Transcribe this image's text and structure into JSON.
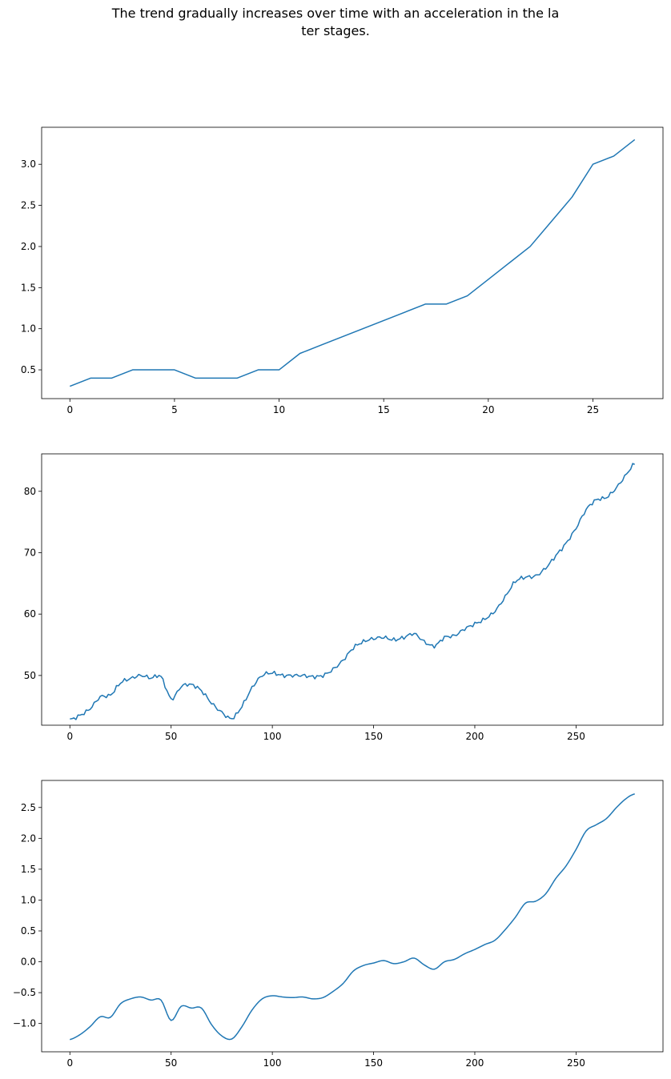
{
  "title_lines": [
    "The trend gradually increases over time with an acceleration in the la",
    "ter stages."
  ],
  "colors": {
    "line": "#1f77b4",
    "axes": "#000000",
    "background": "#ffffff"
  },
  "chart_data": [
    {
      "type": "line",
      "xlim": [
        -1.35,
        28.35
      ],
      "ylim": [
        0.15,
        3.45
      ],
      "xticks": [
        0,
        5,
        10,
        15,
        20,
        25
      ],
      "yticks": [
        0.5,
        1.0,
        1.5,
        2.0,
        2.5,
        3.0
      ],
      "ytick_labels": [
        "0.5",
        "1.0",
        "1.5",
        "2.0",
        "2.5",
        "3.0"
      ],
      "grid": false,
      "x": [
        0,
        1,
        2,
        3,
        4,
        5,
        6,
        7,
        8,
        9,
        10,
        11,
        12,
        13,
        14,
        15,
        16,
        17,
        18,
        19,
        20,
        21,
        22,
        23,
        24,
        25,
        26,
        27
      ],
      "y": [
        0.3,
        0.4,
        0.4,
        0.5,
        0.5,
        0.5,
        0.4,
        0.4,
        0.4,
        0.5,
        0.5,
        0.7,
        0.8,
        0.9,
        1.0,
        1.1,
        1.2,
        1.3,
        1.3,
        1.4,
        1.6,
        1.8,
        2.0,
        2.3,
        2.6,
        3.0,
        3.1,
        3.3
      ]
    },
    {
      "type": "line",
      "xlim": [
        -13.95,
        292.95
      ],
      "ylim": [
        41.9,
        86.1
      ],
      "xticks": [
        0,
        50,
        100,
        150,
        200,
        250
      ],
      "yticks": [
        50,
        60,
        70,
        80
      ],
      "ytick_labels": [
        "50",
        "60",
        "70",
        "80"
      ],
      "grid": false,
      "anchors_x": [
        0,
        5,
        10,
        15,
        20,
        25,
        30,
        35,
        40,
        45,
        50,
        55,
        60,
        65,
        70,
        75,
        80,
        85,
        90,
        95,
        100,
        105,
        110,
        115,
        120,
        125,
        130,
        135,
        140,
        145,
        150,
        155,
        160,
        165,
        170,
        175,
        180,
        185,
        190,
        195,
        200,
        205,
        210,
        215,
        220,
        225,
        230,
        235,
        240,
        245,
        250,
        255,
        260,
        265,
        270,
        275,
        279
      ],
      "anchors_y": [
        42.8,
        43.5,
        44.6,
        46.5,
        46.8,
        48.8,
        49.5,
        50.0,
        49.6,
        49.8,
        46.2,
        48.2,
        48.5,
        47.5,
        45.5,
        44.0,
        43.0,
        45.0,
        48.0,
        50.0,
        50.4,
        50.0,
        50.0,
        50.0,
        49.8,
        50.0,
        51.0,
        52.5,
        54.5,
        55.5,
        56.0,
        56.2,
        55.8,
        56.2,
        56.8,
        55.5,
        54.8,
        56.2,
        56.5,
        57.6,
        58.4,
        59.2,
        60.5,
        62.8,
        65.3,
        66.0,
        66.2,
        67.5,
        69.5,
        71.5,
        74.0,
        77.0,
        78.6,
        79.0,
        80.6,
        82.8,
        84.5
      ],
      "noise_amplitude": 0.35
    },
    {
      "type": "line",
      "xlim": [
        -13.95,
        292.95
      ],
      "ylim": [
        -1.458,
        2.938
      ],
      "xticks": [
        0,
        50,
        100,
        150,
        200,
        250
      ],
      "yticks": [
        -1.0,
        -0.5,
        0.0,
        0.5,
        1.0,
        1.5,
        2.0,
        2.5
      ],
      "ytick_labels": [
        "−1.0",
        "−0.5",
        "0.0",
        "0.5",
        "1.0",
        "1.5",
        "2.0",
        "2.5"
      ],
      "grid": false,
      "anchors_x": [
        0,
        5,
        10,
        15,
        20,
        25,
        30,
        35,
        40,
        45,
        50,
        55,
        60,
        65,
        70,
        75,
        80,
        85,
        90,
        95,
        100,
        105,
        110,
        115,
        120,
        125,
        130,
        135,
        140,
        145,
        150,
        155,
        160,
        165,
        170,
        175,
        180,
        185,
        190,
        195,
        200,
        205,
        210,
        215,
        220,
        225,
        230,
        235,
        240,
        245,
        250,
        255,
        260,
        265,
        270,
        275,
        279
      ],
      "anchors_y": [
        -1.26,
        -1.18,
        -1.05,
        -0.89,
        -0.9,
        -0.68,
        -0.6,
        -0.57,
        -0.62,
        -0.62,
        -0.95,
        -0.72,
        -0.75,
        -0.75,
        -1.02,
        -1.2,
        -1.25,
        -1.05,
        -0.78,
        -0.6,
        -0.55,
        -0.57,
        -0.58,
        -0.57,
        -0.6,
        -0.58,
        -0.48,
        -0.35,
        -0.15,
        -0.06,
        -0.02,
        0.02,
        -0.03,
        0.0,
        0.06,
        -0.05,
        -0.12,
        0.0,
        0.04,
        0.13,
        0.2,
        0.28,
        0.35,
        0.52,
        0.72,
        0.95,
        0.98,
        1.1,
        1.35,
        1.55,
        1.82,
        2.12,
        2.22,
        2.32,
        2.5,
        2.65,
        2.72
      ]
    }
  ]
}
